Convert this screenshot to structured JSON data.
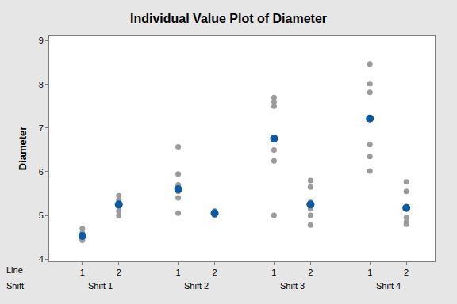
{
  "chart_data": {
    "type": "individual_value",
    "title": "Individual Value Plot of Diameter",
    "y_label": "Diameter",
    "x_level_labels": [
      "Line",
      "Shift"
    ],
    "categories": [
      "1",
      "2",
      "1",
      "2",
      "1",
      "2",
      "1",
      "2"
    ],
    "groups": [
      {
        "label": "Shift 1",
        "size": 2
      },
      {
        "label": "Shift 2",
        "size": 2
      },
      {
        "label": "Shift 3",
        "size": 2
      },
      {
        "label": "Shift 4",
        "size": 2
      }
    ],
    "series": [
      {
        "color": "#9b9b9b",
        "marker": "circle",
        "values": [
          [
            4.7,
            4.6,
            4.55,
            4.5,
            4.45,
            4.43
          ],
          [
            5.45,
            5.35,
            5.25,
            5.2,
            5.1,
            5.0
          ],
          [
            6.57,
            5.95,
            5.7,
            5.55,
            5.4,
            5.05
          ],
          [
            5.1,
            5.07,
            5.05,
            5.02,
            5.0
          ],
          [
            7.7,
            7.6,
            7.5,
            6.5,
            6.25,
            5.0
          ],
          [
            5.8,
            5.65,
            5.3,
            5.15,
            5.0,
            4.78
          ],
          [
            8.47,
            8.02,
            7.82,
            6.62,
            6.35,
            6.02
          ],
          [
            5.77,
            5.55,
            5.2,
            4.95,
            4.85,
            4.8
          ]
        ]
      },
      {
        "color": "#0b5aa2",
        "marker": "circle",
        "values": [
          4.53,
          5.25,
          5.6,
          5.05,
          6.76,
          5.25,
          7.22,
          5.17
        ]
      }
    ],
    "ylim": [
      3.95,
      9.12
    ],
    "yticks": [
      4,
      5,
      6,
      7,
      8,
      9
    ],
    "grid": false
  }
}
